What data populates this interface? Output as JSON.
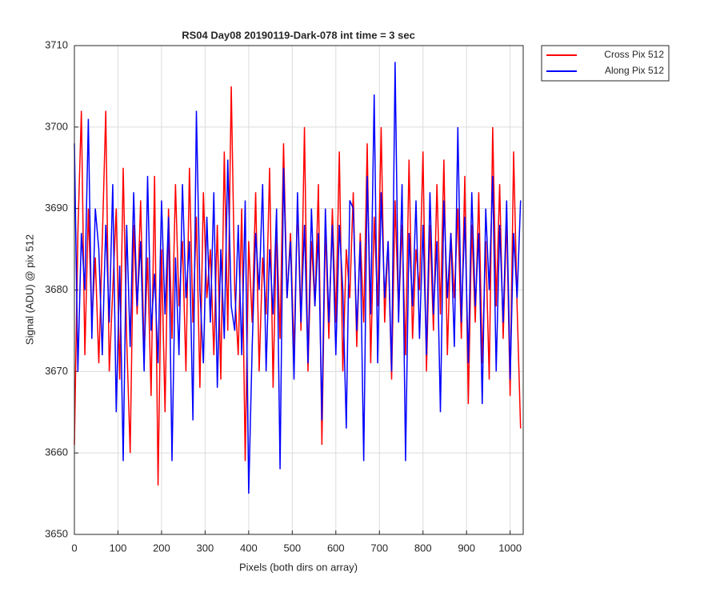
{
  "chart_data": {
    "type": "line",
    "title": "RS04 Day08 20190119-Dark-078 int time = 3 sec",
    "xlabel": "Pixels (both dirs on array)",
    "ylabel": "Signal (ADU) @ pix 512",
    "xlim": [
      0,
      1030
    ],
    "ylim": [
      3650,
      3710
    ],
    "xticks": [
      0,
      100,
      200,
      300,
      400,
      500,
      600,
      700,
      800,
      900,
      1000
    ],
    "yticks": [
      3650,
      3660,
      3670,
      3680,
      3690,
      3700,
      3710
    ],
    "grid": true,
    "legend": "northeastoutside",
    "x": [
      0,
      8,
      16,
      24,
      32,
      40,
      48,
      56,
      64,
      72,
      80,
      88,
      96,
      104,
      112,
      120,
      128,
      136,
      144,
      152,
      160,
      168,
      176,
      184,
      192,
      200,
      208,
      216,
      224,
      232,
      240,
      248,
      256,
      264,
      272,
      280,
      288,
      296,
      304,
      312,
      320,
      328,
      336,
      344,
      352,
      360,
      368,
      376,
      384,
      392,
      400,
      408,
      416,
      424,
      432,
      440,
      448,
      456,
      464,
      472,
      480,
      488,
      496,
      504,
      512,
      520,
      528,
      536,
      544,
      552,
      560,
      568,
      576,
      584,
      592,
      600,
      608,
      616,
      624,
      632,
      640,
      648,
      656,
      664,
      672,
      680,
      688,
      696,
      704,
      712,
      720,
      728,
      736,
      744,
      752,
      760,
      768,
      776,
      784,
      792,
      800,
      808,
      816,
      824,
      832,
      840,
      848,
      856,
      864,
      872,
      880,
      888,
      896,
      904,
      912,
      920,
      928,
      936,
      944,
      952,
      960,
      968,
      976,
      984,
      992,
      1000,
      1008,
      1016,
      1024
    ],
    "series": [
      {
        "name": "Cross Pix 512",
        "color": "#ff0000",
        "values": [
          3661,
          3687,
          3702,
          3672,
          3690,
          3676,
          3684,
          3671,
          3686,
          3702,
          3670,
          3680,
          3690,
          3669,
          3695,
          3674,
          3660,
          3688,
          3677,
          3691,
          3672,
          3684,
          3667,
          3694,
          3656,
          3685,
          3665,
          3690,
          3674,
          3693,
          3678,
          3686,
          3670,
          3695,
          3676,
          3689,
          3668,
          3692,
          3679,
          3685,
          3672,
          3688,
          3669,
          3697,
          3675,
          3705,
          3680,
          3672,
          3690,
          3659,
          3686,
          3676,
          3692,
          3670,
          3684,
          3677,
          3695,
          3668,
          3688,
          3674,
          3698,
          3679,
          3687,
          3672,
          3691,
          3675,
          3700,
          3670,
          3686,
          3678,
          3693,
          3661,
          3688,
          3674,
          3690,
          3676,
          3697,
          3670,
          3685,
          3679,
          3692,
          3673,
          3687,
          3676,
          3698,
          3671,
          3689,
          3678,
          3700,
          3676,
          3686,
          3669,
          3691,
          3677,
          3688,
          3672,
          3696,
          3674,
          3685,
          3680,
          3697,
          3670,
          3688,
          3675,
          3693,
          3677,
          3696,
          3672,
          3687,
          3679,
          3690,
          3674,
          3694,
          3666,
          3688,
          3676,
          3692,
          3671,
          3686,
          3669,
          3700,
          3678,
          3693,
          3674,
          3689,
          3667,
          3697,
          3678,
          3663
        ]
      },
      {
        "name": "Along Pix 512",
        "color": "#0000ff",
        "values": [
          3698,
          3670,
          3687,
          3680,
          3701,
          3674,
          3690,
          3685,
          3672,
          3688,
          3676,
          3693,
          3665,
          3683,
          3659,
          3688,
          3673,
          3692,
          3678,
          3686,
          3670,
          3694,
          3675,
          3682,
          3671,
          3691,
          3677,
          3689,
          3659,
          3684,
          3672,
          3693,
          3679,
          3686,
          3664,
          3702,
          3680,
          3671,
          3689,
          3676,
          3692,
          3668,
          3685,
          3674,
          3696,
          3678,
          3675,
          3688,
          3672,
          3691,
          3655,
          3673,
          3687,
          3680,
          3693,
          3670,
          3685,
          3677,
          3690,
          3658,
          3695,
          3679,
          3686,
          3669,
          3692,
          3676,
          3688,
          3671,
          3690,
          3678,
          3687,
          3664,
          3690,
          3676,
          3688,
          3672,
          3688,
          3680,
          3663,
          3691,
          3690,
          3675,
          3686,
          3659,
          3694,
          3677,
          3704,
          3671,
          3692,
          3679,
          3686,
          3670,
          3708,
          3676,
          3693,
          3659,
          3687,
          3678,
          3691,
          3674,
          3688,
          3672,
          3692,
          3677,
          3686,
          3665,
          3691,
          3679,
          3687,
          3673,
          3700,
          3676,
          3689,
          3671,
          3692,
          3678,
          3687,
          3666,
          3690,
          3680,
          3694,
          3670,
          3688,
          3676,
          3691,
          3669,
          3687,
          3679,
          3691
        ]
      }
    ]
  }
}
